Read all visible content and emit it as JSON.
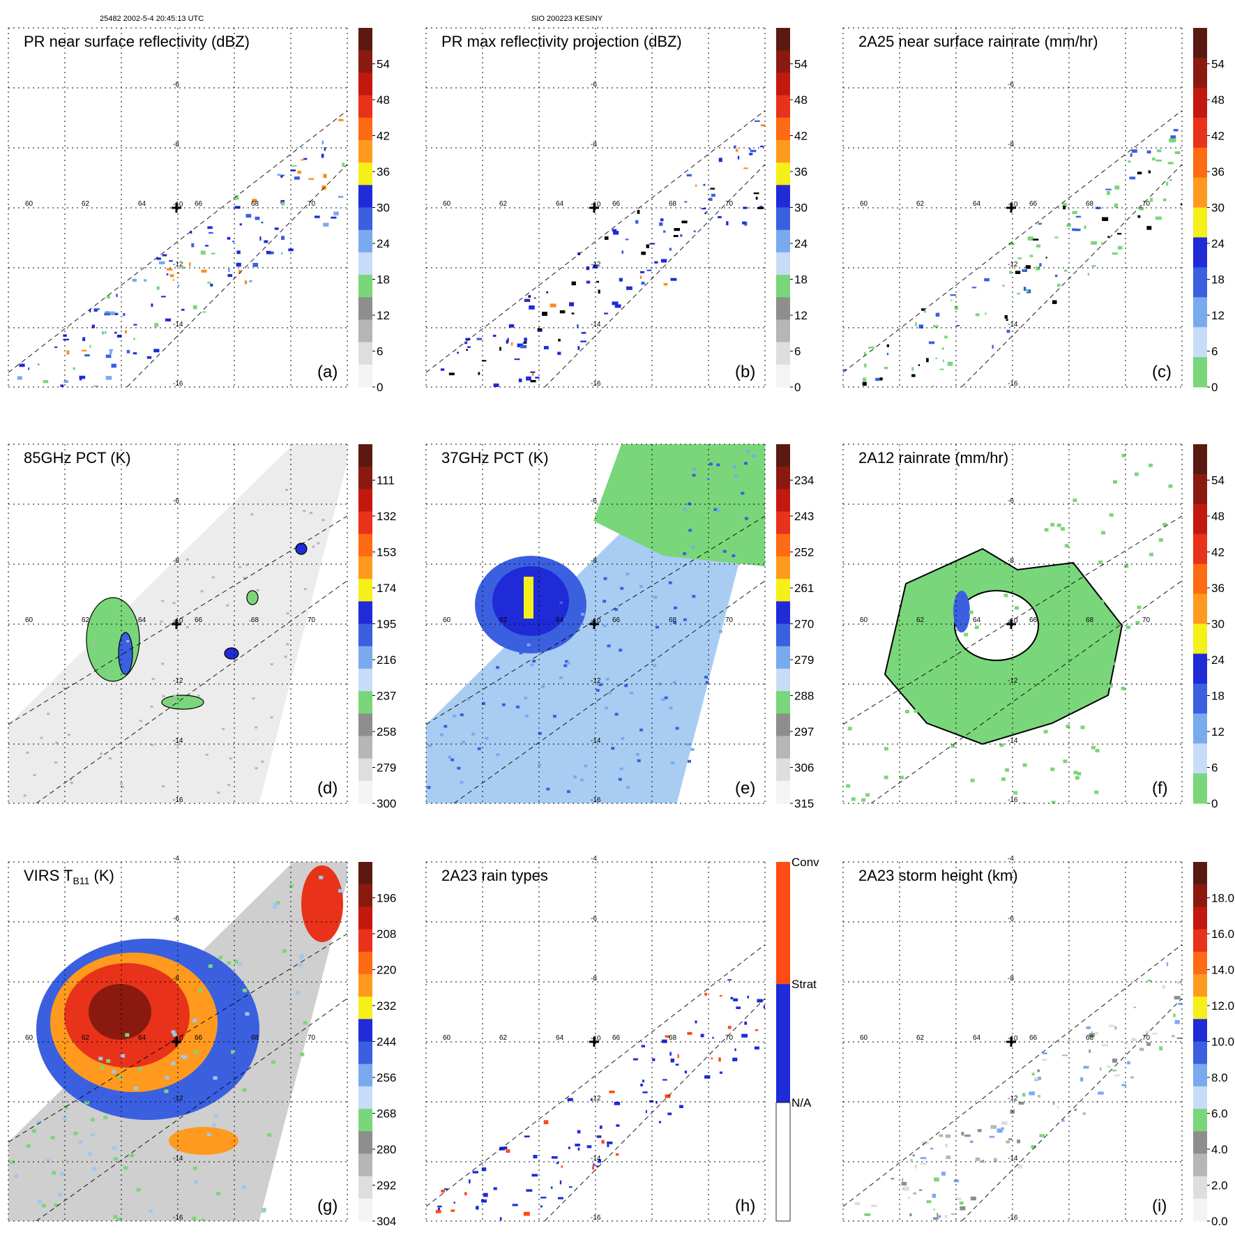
{
  "header": {
    "left": "25482 2002-5-4 20:45:13 UTC",
    "center": "SIO 200223 KESINY"
  },
  "colors": {
    "gray": "#9a9a9a",
    "light_gray": "#d6d6d6",
    "green": "#7ad67a",
    "light_blue": "#9fc7f0",
    "blue": "#1f2bd6",
    "yellow": "#f5ef1a",
    "orange": "#ff8c1a",
    "red": "#e81e0e",
    "dark_red": "#7a1010"
  },
  "chart_data": [
    {
      "id": "a",
      "type": "heatmap",
      "title": "PR near surface reflectivity (dBZ)",
      "letter": "(a)",
      "colorbar_ticks": [
        "54",
        "48",
        "42",
        "36",
        "30",
        "24",
        "18",
        "12",
        "6",
        "0"
      ],
      "lon_labels": [
        "60",
        "62",
        "64",
        "66",
        "68",
        "70"
      ],
      "lat_labels": [
        "-6",
        "-8",
        "-10",
        "-12",
        "-14",
        "-16"
      ],
      "swath": "narrow",
      "field": "reflectivity_sparse"
    },
    {
      "id": "b",
      "type": "heatmap",
      "title": "PR max reflectivity projection (dBZ)",
      "letter": "(b)",
      "colorbar_ticks": [
        "54",
        "48",
        "42",
        "36",
        "30",
        "24",
        "18",
        "12",
        "6",
        "0"
      ],
      "lon_labels": [
        "60",
        "62",
        "64",
        "66",
        "68",
        "70"
      ],
      "lat_labels": [
        "-6",
        "-8",
        "-10",
        "-12",
        "-14",
        "-16"
      ],
      "swath": "narrow",
      "field": "reflectivity_contoured"
    },
    {
      "id": "c",
      "type": "heatmap",
      "title": "2A25 near surface rainrate (mm/hr)",
      "letter": "(c)",
      "colorbar_ticks": [
        "54",
        "48",
        "42",
        "36",
        "30",
        "24",
        "18",
        "12",
        "6",
        "0"
      ],
      "lon_labels": [
        "60",
        "62",
        "64",
        "66",
        "68",
        "70"
      ],
      "lat_labels": [
        "-6",
        "-8",
        "-10",
        "-12",
        "-14",
        "-16"
      ],
      "swath": "narrow",
      "field": "rainrate_green"
    },
    {
      "id": "d",
      "type": "heatmap",
      "title": "85GHz PCT (K)",
      "letter": "(d)",
      "colorbar_ticks": [
        "111",
        "132",
        "153",
        "174",
        "195",
        "216",
        "237",
        "258",
        "279",
        "300"
      ],
      "lon_labels": [
        "60",
        "62",
        "64",
        "66",
        "68",
        "70"
      ],
      "lat_labels": [
        "-6",
        "-8",
        "-10",
        "-12",
        "-14",
        "-16"
      ],
      "swath": "wide",
      "field": "pct85"
    },
    {
      "id": "e",
      "type": "heatmap",
      "title": "37GHz PCT (K)",
      "letter": "(e)",
      "colorbar_ticks": [
        "234",
        "243",
        "252",
        "261",
        "270",
        "279",
        "288",
        "297",
        "306",
        "315"
      ],
      "lon_labels": [
        "60",
        "62",
        "64",
        "66",
        "68",
        "70"
      ],
      "lat_labels": [
        "-6",
        "-8",
        "-10",
        "-12",
        "-14",
        "-16"
      ],
      "swath": "wide",
      "field": "pct37"
    },
    {
      "id": "f",
      "type": "heatmap",
      "title": "2A12 rainrate (mm/hr)",
      "letter": "(f)",
      "colorbar_ticks": [
        "54",
        "48",
        "42",
        "36",
        "30",
        "24",
        "18",
        "12",
        "6",
        "0"
      ],
      "lon_labels": [
        "60",
        "62",
        "64",
        "66",
        "68",
        "70"
      ],
      "lat_labels": [
        "-6",
        "-8",
        "-10",
        "-12",
        "-14",
        "-16"
      ],
      "swath": "wide",
      "field": "rain2a12"
    },
    {
      "id": "g",
      "type": "heatmap",
      "title_main": "VIRS T",
      "title_sub": "B11",
      "title_unit": " (K)",
      "letter": "(g)",
      "colorbar_ticks": [
        "196",
        "208",
        "220",
        "232",
        "244",
        "256",
        "268",
        "280",
        "292",
        "304"
      ],
      "lon_labels": [
        "60",
        "62",
        "64",
        "66",
        "68",
        "70"
      ],
      "lat_labels": [
        "-4",
        "-6",
        "-8",
        "-10",
        "-12",
        "-14",
        "-16"
      ],
      "swath": "wide",
      "field": "virs"
    },
    {
      "id": "h",
      "type": "heatmap",
      "title": "2A23 rain types",
      "letter": "(h)",
      "colorbar_ticks": [
        "Conv",
        "Strat",
        "N/A"
      ],
      "lon_labels": [
        "60",
        "62",
        "64",
        "66",
        "68",
        "70"
      ],
      "lat_labels": [
        "-4",
        "-6",
        "-8",
        "-10",
        "-12",
        "-14",
        "-16"
      ],
      "swath": "narrow",
      "field": "raintype"
    },
    {
      "id": "i",
      "type": "heatmap",
      "title": "2A23 storm height (km)",
      "letter": "(i)",
      "colorbar_ticks": [
        "18.0",
        "16.0",
        "14.0",
        "12.0",
        "10.0",
        "8.0",
        "6.0",
        "4.0",
        "2.0",
        "0.0"
      ],
      "lon_labels": [
        "60",
        "62",
        "64",
        "66",
        "68",
        "70"
      ],
      "lat_labels": [
        "-4",
        "-6",
        "-8",
        "-10",
        "-12",
        "-14",
        "-16"
      ],
      "swath": "narrow",
      "field": "stormheight"
    }
  ]
}
